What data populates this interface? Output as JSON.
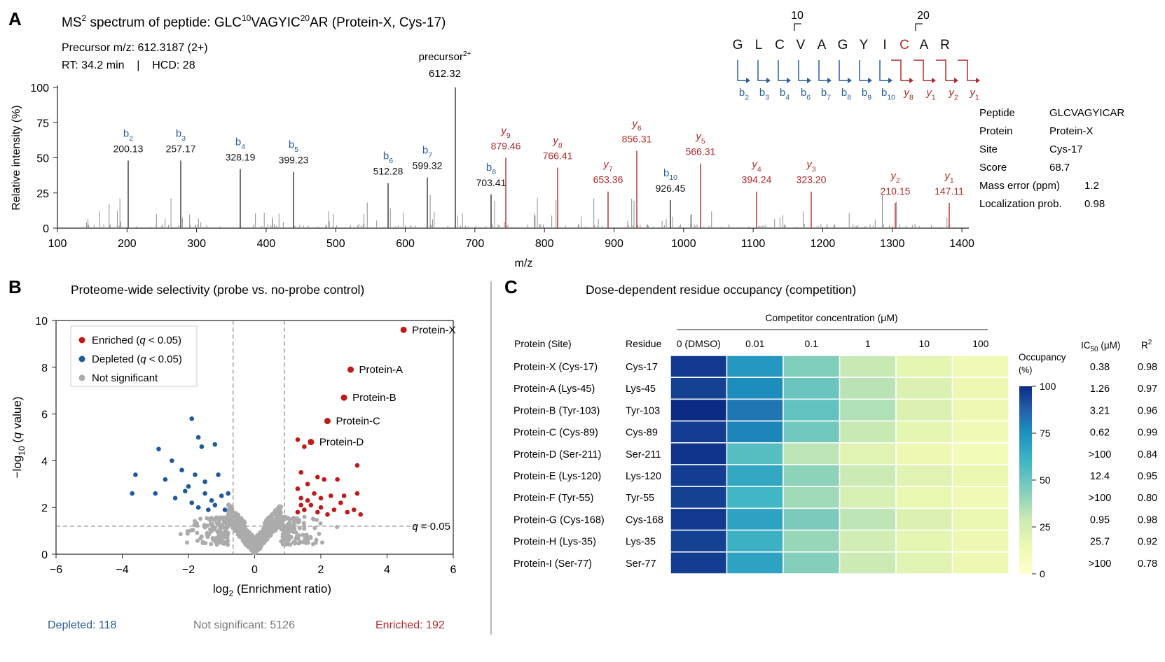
{
  "colors": {
    "b_ion": "#2a5d9f",
    "y_ion": "#b22a2a",
    "peak": "#8f8f8f",
    "enriched": "#c0191b",
    "depleted": "#1f5a9c",
    "not_significant": "#ababab",
    "depleted_text": "#2a5d9f",
    "ns_text": "#777777",
    "enriched_text": "#b22a2a"
  },
  "panel_a": {
    "letter": "A",
    "title_prefix": "MS",
    "title_sup": "2",
    "title_mid": " spectrum of peptide: GLC",
    "title_sup10": "10",
    "title_mid2": "VAGYIC",
    "title_sup20": "20",
    "title_suffix": "AR (Protein-X, Cys-17)",
    "precursor_line": "Precursor m/z: 612.3187 (2+)",
    "rt_line": "RT: 34.2 min    |    HCD: 28",
    "precursor_label": "precursor",
    "precursor_label_sup": "2+",
    "precursor_value": "612.32",
    "sequence": [
      "G",
      "L",
      "C",
      "V",
      "A",
      "G",
      "Y",
      "I",
      "C",
      "A",
      "R"
    ],
    "sequence_red_index": 8,
    "pos10": "10",
    "pos20": "20",
    "frag_labels": [
      {
        "ion": "b",
        "sub": "2"
      },
      {
        "ion": "b",
        "sub": "3"
      },
      {
        "ion": "b",
        "sub": "4"
      },
      {
        "ion": "b",
        "sub": "6"
      },
      {
        "ion": "b",
        "sub": "7"
      },
      {
        "ion": "b",
        "sub": "8"
      },
      {
        "ion": "b",
        "sub": "9"
      },
      {
        "ion": "b",
        "sub": "10"
      },
      {
        "ion": "y",
        "sub": "8"
      },
      {
        "ion": "y",
        "sub": "1"
      },
      {
        "ion": "y",
        "sub": "2"
      },
      {
        "ion": "y",
        "sub": "1"
      }
    ],
    "info_table": [
      {
        "key": "Peptide",
        "value": "GLCVAGYICAR"
      },
      {
        "key": "Protein",
        "value": "Protein-X"
      },
      {
        "key": "Site",
        "value": "Cys-17"
      },
      {
        "key": "Score",
        "value": "68.7"
      },
      {
        "key": "Mass error (ppm)",
        "value": "1.2"
      },
      {
        "key": "Localization prob.",
        "value": "0.98"
      }
    ]
  },
  "panel_b": {
    "letter": "B",
    "title": "Proteome-wide selectivity (probe vs. no-probe control)",
    "legend": [
      "Enriched (q < 0.05)",
      "Depleted (q < 0.05)",
      "Not significant"
    ],
    "threshold_label": "q = 0.05",
    "summary": {
      "depleted": "Depleted: 118",
      "ns": "Not significant: 5126",
      "enriched": "Enriched: 192"
    }
  },
  "panel_c": {
    "letter": "C",
    "title": "Dose-dependent residue occupancy (competition)",
    "conc_header": "Competitor concentration (μM)",
    "col_protein_header": "Protein (Site)",
    "col_residue_header": "Residue",
    "col_ic50_header": "IC",
    "col_ic50_sub": "50",
    "col_ic50_unit": " (μM)",
    "col_r2_header": "R",
    "col_r2_sup": "2",
    "colorbar_title": "Occupancy",
    "colorbar_unit": "(%)"
  },
  "chart_data": [
    {
      "type": "bar",
      "subtype": "ms2_spectrum",
      "xlabel": "m/z",
      "ylabel": "Relative intensity (%)",
      "xlim": [
        100,
        1410
      ],
      "ylim": [
        0,
        100
      ],
      "xticks": [
        100,
        200,
        300,
        400,
        500,
        600,
        700,
        800,
        900,
        1000,
        1100,
        1200,
        1300,
        1400
      ],
      "yticks": [
        0,
        25,
        50,
        75,
        100
      ],
      "annotated_peaks": [
        {
          "mz": 200.13,
          "intensity": 48,
          "ion": "b",
          "sub": "2",
          "label": "200.13"
        },
        {
          "mz": 257.17,
          "intensity": 48,
          "ion": "b",
          "sub": "3",
          "label": "257.17"
        },
        {
          "mz": 328.19,
          "intensity": 42,
          "ion": "b",
          "sub": "4",
          "label": "328.19"
        },
        {
          "mz": 399.23,
          "intensity": 40,
          "ion": "b",
          "sub": "5",
          "label": "399.23"
        },
        {
          "mz": 512.28,
          "intensity": 32,
          "ion": "b",
          "sub": "6",
          "label": "512.28"
        },
        {
          "mz": 599.32,
          "intensity": 36,
          "ion": "b",
          "sub": "7",
          "label": "599.32"
        },
        {
          "mz": 703.41,
          "intensity": 24,
          "ion": "b",
          "sub": "8",
          "label": "703.41"
        },
        {
          "mz": 879.46,
          "intensity": 50,
          "ion": "y",
          "sub": "9",
          "label": "879.46"
        },
        {
          "mz": 766.41,
          "intensity": 43,
          "ion": "y",
          "sub": "8",
          "label": "766.41"
        },
        {
          "mz": 653.36,
          "intensity": 26,
          "ion": "y",
          "sub": "7",
          "label": "653.36"
        },
        {
          "mz": 926.45,
          "intensity": 20,
          "ion": "b",
          "sub": "10",
          "label": "926.45"
        },
        {
          "mz": 856.31,
          "intensity": 55,
          "ion": "y",
          "sub": "6",
          "label": "856.31"
        },
        {
          "mz": 566.31,
          "intensity": 46,
          "ion": "y",
          "sub": "5",
          "label": "566.31"
        },
        {
          "mz": 394.24,
          "intensity": 26,
          "ion": "y",
          "sub": "4",
          "label": "394.24"
        },
        {
          "mz": 323.2,
          "intensity": 26,
          "ion": "y",
          "sub": "3",
          "label": "323.20"
        },
        {
          "mz": 210.15,
          "intensity": 18,
          "ion": "y",
          "sub": "2",
          "label": "210.15"
        },
        {
          "mz": 147.11,
          "intensity": 18,
          "ion": "y",
          "sub": "1",
          "label": "147.11"
        }
      ],
      "precursor_peak": {
        "mz": 612.32,
        "intensity": 100
      }
    },
    {
      "type": "scatter",
      "subtype": "volcano",
      "xlabel": "log2 (Enrichment ratio)",
      "ylabel": "−log10 (q value)",
      "xlim": [
        -6,
        6
      ],
      "ylim": [
        0,
        10
      ],
      "xticks": [
        -6,
        -4,
        -2,
        0,
        2,
        4,
        6
      ],
      "yticks": [
        0,
        2,
        4,
        6,
        8,
        10
      ],
      "fold_change_lines": [
        -0.65,
        0.9
      ],
      "q_threshold_y": 1.2,
      "labeled_points": [
        {
          "name": "Protein-X",
          "x": 4.5,
          "y": 9.6
        },
        {
          "name": "Protein-A",
          "x": 2.9,
          "y": 7.9
        },
        {
          "name": "Protein-B",
          "x": 2.7,
          "y": 6.7
        },
        {
          "name": "Protein-C",
          "x": 2.2,
          "y": 5.7
        },
        {
          "name": "Protein-D",
          "x": 1.7,
          "y": 4.8
        }
      ],
      "enriched_points": [
        [
          1.3,
          4.9
        ],
        [
          1.5,
          4.6
        ],
        [
          1.4,
          3.5
        ],
        [
          1.6,
          3.0
        ],
        [
          1.9,
          3.3
        ],
        [
          2.1,
          3.2
        ],
        [
          2.5,
          3.2
        ],
        [
          3.1,
          3.8
        ],
        [
          1.3,
          2.8
        ],
        [
          1.8,
          2.6
        ],
        [
          2.3,
          2.5
        ],
        [
          2.7,
          2.5
        ],
        [
          3.1,
          2.6
        ],
        [
          1.4,
          2.1
        ],
        [
          1.7,
          2.1
        ],
        [
          2.0,
          2.0
        ],
        [
          2.4,
          1.9
        ],
        [
          2.6,
          2.2
        ],
        [
          3.0,
          1.9
        ],
        [
          1.3,
          1.8
        ],
        [
          1.5,
          1.9
        ],
        [
          1.9,
          1.8
        ],
        [
          2.2,
          1.7
        ],
        [
          3.2,
          1.7
        ],
        [
          1.6,
          2.3
        ],
        [
          2.0,
          2.4
        ],
        [
          1.4,
          2.4
        ],
        [
          2.8,
          1.8
        ]
      ],
      "depleted_points": [
        [
          -1.9,
          5.8
        ],
        [
          -1.7,
          5.0
        ],
        [
          -1.6,
          4.6
        ],
        [
          -1.2,
          4.7
        ],
        [
          -2.9,
          4.5
        ],
        [
          -2.5,
          4.0
        ],
        [
          -3.6,
          3.4
        ],
        [
          -2.2,
          3.6
        ],
        [
          -1.5,
          3.1
        ],
        [
          -2.7,
          3.2
        ],
        [
          -1.8,
          3.4
        ],
        [
          -1.1,
          3.4
        ],
        [
          -3.0,
          2.6
        ],
        [
          -3.7,
          2.6
        ],
        [
          -2.4,
          2.4
        ],
        [
          -1.9,
          2.2
        ],
        [
          -1.3,
          2.3
        ],
        [
          -1.0,
          2.5
        ],
        [
          -1.7,
          2.0
        ],
        [
          -2.1,
          2.7
        ],
        [
          -1.4,
          1.9
        ],
        [
          -1.2,
          2.1
        ],
        [
          -0.9,
          1.9
        ],
        [
          -0.8,
          2.6
        ],
        [
          -1.5,
          2.6
        ],
        [
          -2.0,
          2.9
        ]
      ]
    },
    {
      "type": "heatmap",
      "columns": [
        "0 (DMSO)",
        "0.01",
        "0.1",
        "1",
        "10",
        "100"
      ],
      "rows": [
        {
          "protein": "Protein-X (Cys-17)",
          "residue": "Cys-17",
          "values": [
            97,
            72,
            45,
            30,
            18,
            12
          ],
          "ic50": "0.38",
          "r2": "0.98"
        },
        {
          "protein": "Protein-A (Lys-45)",
          "residue": "Lys-45",
          "values": [
            95,
            76,
            50,
            33,
            22,
            14
          ],
          "ic50": "1.26",
          "r2": "0.97"
        },
        {
          "protein": "Protein-B (Tyr-103)",
          "residue": "Tyr-103",
          "values": [
            100,
            82,
            52,
            35,
            22,
            14
          ],
          "ic50": "3.21",
          "r2": "0.96"
        },
        {
          "protein": "Protein-C (Cys-89)",
          "residue": "Cys-89",
          "values": [
            96,
            78,
            48,
            30,
            18,
            12
          ],
          "ic50": "0.62",
          "r2": "0.99"
        },
        {
          "protein": "Protein-D (Ser-211)",
          "residue": "Ser-211",
          "values": [
            98,
            55,
            32,
            20,
            14,
            10
          ],
          "ic50": ">100",
          "r2": "0.84"
        },
        {
          "protein": "Protein-E (Lys-120)",
          "residue": "Lys-120",
          "values": [
            96,
            66,
            42,
            28,
            20,
            16
          ],
          "ic50": "12.4",
          "r2": "0.95"
        },
        {
          "protein": "Protein-F (Tyr-55)",
          "residue": "Tyr-55",
          "values": [
            95,
            60,
            38,
            24,
            16,
            12
          ],
          "ic50": ">100",
          "r2": "0.80"
        },
        {
          "protein": "Protein-G (Cys-168)",
          "residue": "Cys-168",
          "values": [
            97,
            68,
            46,
            32,
            22,
            16
          ],
          "ic50": "0.95",
          "r2": "0.98"
        },
        {
          "protein": "Protein-H (Lys-35)",
          "residue": "Lys-35",
          "values": [
            95,
            62,
            40,
            26,
            18,
            14
          ],
          "ic50": "25.7",
          "r2": "0.92"
        },
        {
          "protein": "Protein-I  (Ser-77)",
          "residue": "Ser-77",
          "values": [
            96,
            68,
            44,
            28,
            20,
            14
          ],
          "ic50": ">100",
          "r2": "0.78"
        }
      ],
      "colorbar_ticks": [
        0,
        25,
        50,
        75,
        100
      ],
      "vmin": 0,
      "vmax": 100
    }
  ]
}
